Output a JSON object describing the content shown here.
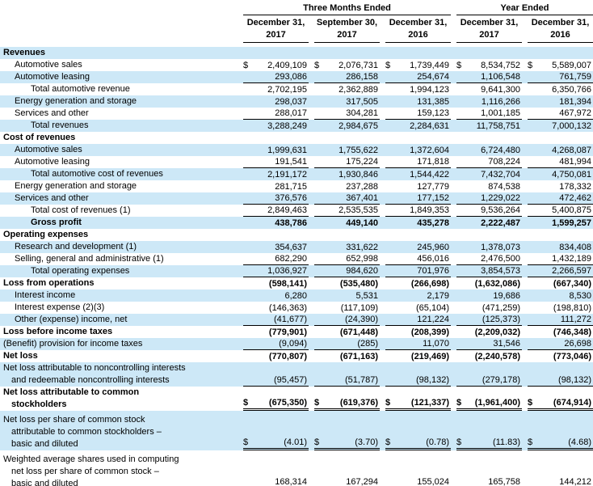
{
  "colors": {
    "row_highlight": "#cde8f7",
    "text": "#000000",
    "rule": "#000000"
  },
  "table": {
    "header": {
      "group_three_months": "Three Months Ended",
      "group_year": "Year Ended",
      "columns": [
        {
          "line1": "December 31,",
          "line2": "2017"
        },
        {
          "line1": "September 30,",
          "line2": "2017"
        },
        {
          "line1": "December 31,",
          "line2": "2016"
        },
        {
          "line1": "December 31,",
          "line2": "2017"
        },
        {
          "line1": "December 31,",
          "line2": "2016"
        }
      ]
    },
    "rows": [
      {
        "label_lines": [
          "Revenues"
        ],
        "indent": 0,
        "bold": true,
        "shade": true,
        "dollar": false,
        "underline": "none",
        "values": null
      },
      {
        "label_lines": [
          "Automotive sales"
        ],
        "indent": 1,
        "bold": false,
        "shade": false,
        "dollar": true,
        "underline": "none",
        "values": [
          "2,409,109",
          "2,076,731",
          "1,739,449",
          "8,534,752",
          "5,589,007"
        ]
      },
      {
        "label_lines": [
          "Automotive leasing"
        ],
        "indent": 1,
        "bold": false,
        "shade": true,
        "dollar": false,
        "underline": "single",
        "values": [
          "293,086",
          "286,158",
          "254,674",
          "1,106,548",
          "761,759"
        ]
      },
      {
        "label_lines": [
          "Total automotive revenue"
        ],
        "indent": 2,
        "bold": false,
        "shade": false,
        "dollar": false,
        "underline": "none",
        "values": [
          "2,702,195",
          "2,362,889",
          "1,994,123",
          "9,641,300",
          "6,350,766"
        ]
      },
      {
        "label_lines": [
          "Energy generation and storage"
        ],
        "indent": 1,
        "bold": false,
        "shade": true,
        "dollar": false,
        "underline": "none",
        "values": [
          "298,037",
          "317,505",
          "131,385",
          "1,116,266",
          "181,394"
        ]
      },
      {
        "label_lines": [
          "Services and other"
        ],
        "indent": 1,
        "bold": false,
        "shade": false,
        "dollar": false,
        "underline": "single",
        "values": [
          "288,017",
          "304,281",
          "159,123",
          "1,001,185",
          "467,972"
        ]
      },
      {
        "label_lines": [
          "Total revenues"
        ],
        "indent": 2,
        "bold": false,
        "shade": true,
        "dollar": false,
        "underline": "none",
        "values": [
          "3,288,249",
          "2,984,675",
          "2,284,631",
          "11,758,751",
          "7,000,132"
        ]
      },
      {
        "label_lines": [
          "Cost of revenues"
        ],
        "indent": 0,
        "bold": true,
        "shade": false,
        "dollar": false,
        "underline": "none",
        "values": null
      },
      {
        "label_lines": [
          "Automotive sales"
        ],
        "indent": 1,
        "bold": false,
        "shade": true,
        "dollar": false,
        "underline": "none",
        "values": [
          "1,999,631",
          "1,755,622",
          "1,372,604",
          "6,724,480",
          "4,268,087"
        ]
      },
      {
        "label_lines": [
          "Automotive leasing"
        ],
        "indent": 1,
        "bold": false,
        "shade": false,
        "dollar": false,
        "underline": "single",
        "values": [
          "191,541",
          "175,224",
          "171,818",
          "708,224",
          "481,994"
        ]
      },
      {
        "label_lines": [
          "Total automotive cost of revenues"
        ],
        "indent": 2,
        "bold": false,
        "shade": true,
        "dollar": false,
        "underline": "none",
        "values": [
          "2,191,172",
          "1,930,846",
          "1,544,422",
          "7,432,704",
          "4,750,081"
        ]
      },
      {
        "label_lines": [
          "Energy generation and storage"
        ],
        "indent": 1,
        "bold": false,
        "shade": false,
        "dollar": false,
        "underline": "none",
        "values": [
          "281,715",
          "237,288",
          "127,779",
          "874,538",
          "178,332"
        ]
      },
      {
        "label_lines": [
          "Services and other"
        ],
        "indent": 1,
        "bold": false,
        "shade": true,
        "dollar": false,
        "underline": "single",
        "values": [
          "376,576",
          "367,401",
          "177,152",
          "1,229,022",
          "472,462"
        ]
      },
      {
        "label_lines": [
          "Total cost of revenues (1)"
        ],
        "indent": 2,
        "bold": false,
        "shade": false,
        "dollar": false,
        "underline": "single",
        "values": [
          "2,849,463",
          "2,535,535",
          "1,849,353",
          "9,536,264",
          "5,400,875"
        ]
      },
      {
        "label_lines": [
          "Gross profit"
        ],
        "indent": 2,
        "bold": true,
        "shade": true,
        "dollar": false,
        "underline": "none",
        "values": [
          "438,786",
          "449,140",
          "435,278",
          "2,222,487",
          "1,599,257"
        ]
      },
      {
        "label_lines": [
          "Operating expenses"
        ],
        "indent": 0,
        "bold": true,
        "shade": false,
        "dollar": false,
        "underline": "none",
        "values": null
      },
      {
        "label_lines": [
          "Research and development (1)"
        ],
        "indent": 1,
        "bold": false,
        "shade": true,
        "dollar": false,
        "underline": "none",
        "values": [
          "354,637",
          "331,622",
          "245,960",
          "1,378,073",
          "834,408"
        ]
      },
      {
        "label_lines": [
          "Selling, general and administrative (1)"
        ],
        "indent": 1,
        "bold": false,
        "shade": false,
        "dollar": false,
        "underline": "single",
        "values": [
          "682,290",
          "652,998",
          "456,016",
          "2,476,500",
          "1,432,189"
        ]
      },
      {
        "label_lines": [
          "Total operating expenses"
        ],
        "indent": 2,
        "bold": false,
        "shade": true,
        "dollar": false,
        "underline": "single",
        "values": [
          "1,036,927",
          "984,620",
          "701,976",
          "3,854,573",
          "2,266,597"
        ]
      },
      {
        "label_lines": [
          "Loss from operations"
        ],
        "indent": 0,
        "bold": true,
        "shade": false,
        "dollar": false,
        "underline": "none",
        "values": [
          "(598,141)",
          "(535,480)",
          "(266,698)",
          "(1,632,086)",
          "(667,340)"
        ]
      },
      {
        "label_lines": [
          "Interest income"
        ],
        "indent": 1,
        "bold": false,
        "shade": true,
        "dollar": false,
        "underline": "none",
        "values": [
          "6,280",
          "5,531",
          "2,179",
          "19,686",
          "8,530"
        ]
      },
      {
        "label_lines": [
          "Interest expense (2)(3)"
        ],
        "indent": 1,
        "bold": false,
        "shade": false,
        "dollar": false,
        "underline": "none",
        "values": [
          "(146,363)",
          "(117,109)",
          "(65,104)",
          "(471,259)",
          "(198,810)"
        ]
      },
      {
        "label_lines": [
          "Other (expense) income, net"
        ],
        "indent": 1,
        "bold": false,
        "shade": true,
        "dollar": false,
        "underline": "single",
        "values": [
          "(41,677)",
          "(24,390)",
          "121,224",
          "(125,373)",
          "111,272"
        ]
      },
      {
        "label_lines": [
          "Loss before income taxes"
        ],
        "indent": 0,
        "bold": true,
        "shade": false,
        "dollar": false,
        "underline": "none",
        "values": [
          "(779,901)",
          "(671,448)",
          "(208,399)",
          "(2,209,032)",
          "(746,348)"
        ]
      },
      {
        "label_lines": [
          "(Benefit) provision for income taxes"
        ],
        "indent": 0,
        "bold": false,
        "shade": true,
        "dollar": false,
        "underline": "single",
        "values": [
          "(9,094)",
          "(285)",
          "11,070",
          "31,546",
          "26,698"
        ]
      },
      {
        "label_lines": [
          "Net loss"
        ],
        "indent": 0,
        "bold": true,
        "shade": false,
        "dollar": false,
        "underline": "none",
        "values": [
          "(770,807)",
          "(671,163)",
          "(219,469)",
          "(2,240,578)",
          "(773,046)"
        ]
      },
      {
        "label_lines": [
          "Net loss attributable to noncontrolling interests",
          "and redeemable noncontrolling interests"
        ],
        "indent": 0,
        "bold": false,
        "shade": true,
        "dollar": false,
        "underline": "single",
        "values": [
          "(95,457)",
          "(51,787)",
          "(98,132)",
          "(279,178)",
          "(98,132)"
        ]
      },
      {
        "label_lines": [
          "Net loss attributable to common",
          "stockholders"
        ],
        "indent": 0,
        "bold": true,
        "shade": false,
        "dollar": true,
        "underline": "double",
        "values": [
          "(675,350)",
          "(619,376)",
          "(121,337)",
          "(1,961,400)",
          "(674,914)"
        ]
      },
      {
        "label_lines": [
          "Net loss per share of common stock",
          "attributable to common stockholders –",
          "basic and diluted"
        ],
        "indent": 0,
        "bold": false,
        "shade": true,
        "dollar": true,
        "underline": "double",
        "spacer": true,
        "values": [
          "(4.01)",
          "(3.70)",
          "(0.78)",
          "(11.83)",
          "(4.68)"
        ]
      },
      {
        "label_lines": [
          "Weighted average shares used in computing",
          "net loss per share of common stock –",
          "basic and diluted"
        ],
        "indent": 0,
        "bold": false,
        "shade": false,
        "dollar": false,
        "underline": "double",
        "spacer": true,
        "values": [
          "168,314",
          "167,294",
          "155,024",
          "165,758",
          "144,212"
        ]
      }
    ]
  }
}
